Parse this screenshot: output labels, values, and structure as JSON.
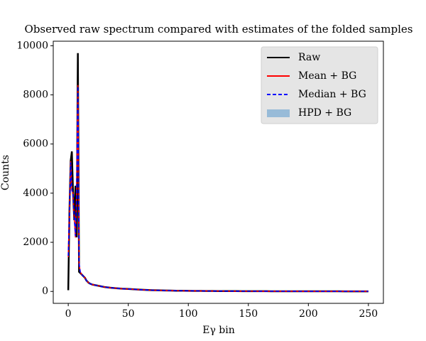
{
  "chart_data": {
    "type": "line",
    "title": "Observed raw spectrum compared with estimates of the folded samples",
    "xlabel": "Eγ bin",
    "ylabel": "Counts",
    "x": [
      0,
      1,
      2,
      3,
      4,
      5,
      6,
      7,
      8,
      9,
      10,
      11,
      12,
      13,
      14,
      15,
      16,
      17,
      18,
      19,
      20,
      25,
      30,
      35,
      40,
      45,
      50,
      55,
      60,
      65,
      70,
      75,
      80,
      85,
      90,
      95,
      100,
      105,
      110,
      115,
      120,
      125,
      130,
      135,
      140,
      145,
      150,
      155,
      160,
      165,
      170,
      175,
      180,
      185,
      190,
      195,
      200,
      205,
      210,
      215,
      220,
      225,
      230,
      235,
      240,
      245,
      250
    ],
    "series": [
      {
        "name": "Raw",
        "color": "#000000",
        "values": [
          50,
          3300,
          5300,
          5700,
          4000,
          2900,
          4300,
          2200,
          9700,
          800,
          750,
          700,
          650,
          600,
          550,
          450,
          400,
          350,
          320,
          300,
          280,
          230,
          180,
          150,
          130,
          110,
          100,
          85,
          70,
          60,
          50,
          45,
          40,
          35,
          30,
          27,
          24,
          22,
          20,
          18,
          16,
          15,
          14,
          13,
          12,
          11,
          10,
          10,
          9,
          9,
          8,
          8,
          7,
          7,
          7,
          6,
          6,
          6,
          5,
          5,
          5,
          5,
          4,
          4,
          4,
          4,
          4
        ]
      },
      {
        "name": "Mean + BG",
        "color": "#ff0000",
        "values": [
          1400,
          3200,
          5300,
          4100,
          4000,
          3000,
          2200,
          4000,
          8400,
          1100,
          800,
          700,
          650,
          600,
          550,
          450,
          400,
          350,
          320,
          300,
          280,
          230,
          180,
          150,
          130,
          110,
          100,
          85,
          70,
          60,
          50,
          45,
          40,
          35,
          30,
          27,
          24,
          22,
          20,
          18,
          16,
          15,
          14,
          13,
          12,
          11,
          10,
          10,
          9,
          9,
          8,
          8,
          7,
          7,
          7,
          6,
          6,
          6,
          5,
          5,
          5,
          5,
          4,
          4,
          4,
          4,
          4
        ]
      },
      {
        "name": "Median + BG",
        "color": "#0000ff",
        "values": [
          1450,
          3150,
          5250,
          4150,
          3950,
          3050,
          2250,
          3950,
          8350,
          1150,
          800,
          700,
          650,
          600,
          550,
          450,
          400,
          350,
          320,
          300,
          280,
          230,
          180,
          150,
          130,
          110,
          100,
          85,
          70,
          60,
          50,
          45,
          40,
          35,
          30,
          27,
          24,
          22,
          20,
          18,
          16,
          15,
          14,
          13,
          12,
          11,
          10,
          10,
          9,
          9,
          8,
          8,
          7,
          7,
          7,
          6,
          6,
          6,
          5,
          5,
          5,
          5,
          4,
          4,
          4,
          4,
          4
        ]
      },
      {
        "name": "HPD + BG",
        "color": "#85b0d4",
        "lower": [
          1300,
          3100,
          5200,
          4000,
          3900,
          2900,
          2100,
          3900,
          8300,
          1050,
          780,
          690,
          640,
          590,
          540,
          440,
          390,
          340,
          310,
          290,
          270,
          225,
          175,
          145,
          125,
          105,
          95,
          80,
          65,
          55,
          47,
          42,
          37,
          32,
          28,
          25,
          22,
          20,
          18,
          16,
          14,
          13,
          12,
          11,
          10,
          9,
          9,
          8,
          8,
          7,
          7,
          7,
          6,
          6,
          6,
          5,
          5,
          5,
          4,
          4,
          4,
          4,
          3,
          3,
          3,
          3,
          3
        ],
        "upper": [
          1500,
          3300,
          5400,
          4200,
          4100,
          3100,
          2300,
          4100,
          8500,
          1150,
          820,
          710,
          660,
          610,
          560,
          460,
          410,
          360,
          330,
          310,
          290,
          235,
          185,
          155,
          135,
          115,
          105,
          90,
          75,
          65,
          53,
          48,
          43,
          38,
          32,
          29,
          26,
          24,
          22,
          20,
          18,
          17,
          16,
          15,
          14,
          13,
          11,
          11,
          10,
          10,
          9,
          9,
          8,
          8,
          8,
          7,
          7,
          7,
          6,
          6,
          6,
          6,
          5,
          5,
          5,
          5,
          5
        ]
      }
    ],
    "xlim": [
      -12.5,
      262.5
    ],
    "ylim": [
      -485,
      10185
    ],
    "xticks": [
      0,
      50,
      100,
      150,
      200,
      250
    ],
    "yticks": [
      0,
      2000,
      4000,
      6000,
      8000,
      10000
    ],
    "legend": "upper right"
  }
}
